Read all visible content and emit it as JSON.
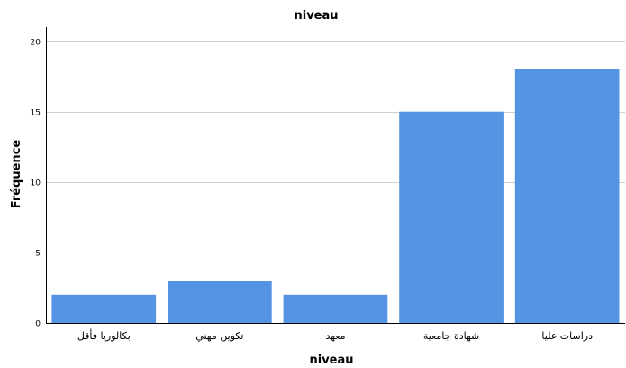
{
  "chart_data": {
    "type": "bar",
    "title": "niveau",
    "xlabel": "niveau",
    "ylabel": "Fréquence",
    "categories": [
      "بكالوريا فأقل",
      "تكوين مهني",
      "معهد",
      "شهادة جامعية",
      "دراسات عليا"
    ],
    "values": [
      2,
      3,
      2,
      15,
      18
    ],
    "ylim": [
      0,
      21
    ],
    "yticks": [
      0,
      5,
      10,
      15,
      20
    ],
    "grid": true,
    "legend": "none",
    "bar_color": "#5594e3"
  }
}
